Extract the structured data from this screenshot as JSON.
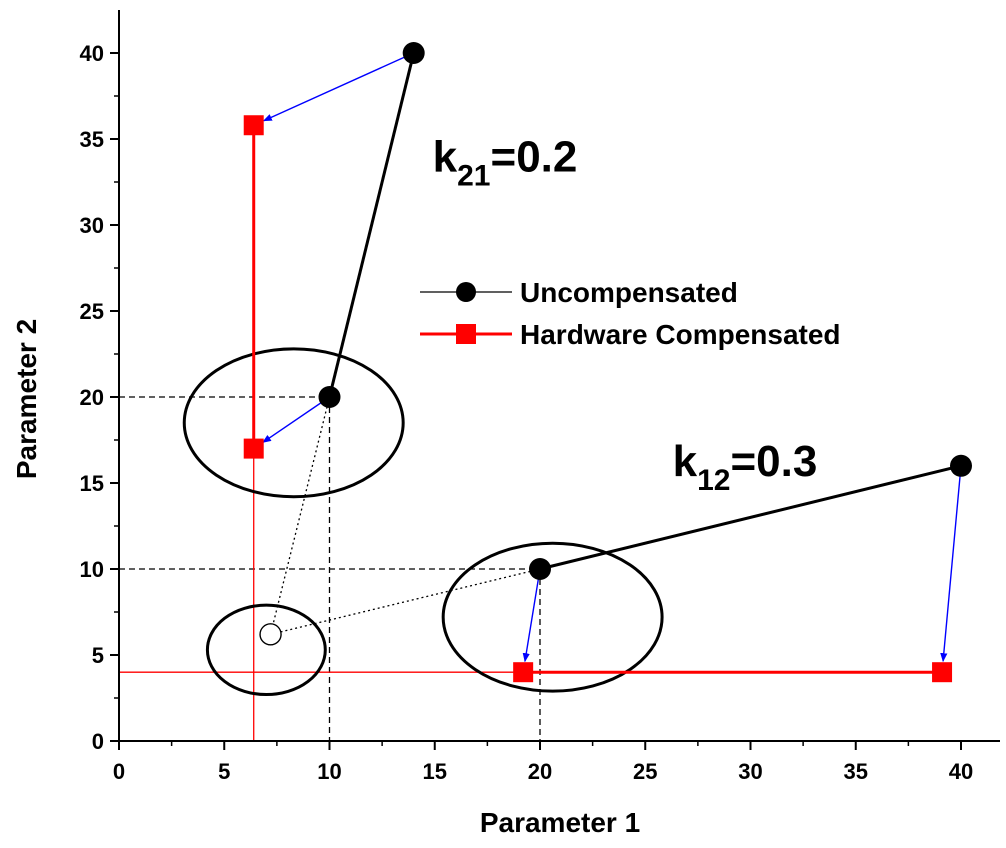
{
  "chart_data": {
    "type": "scatter",
    "title": "",
    "xlabel": "Parameter 1",
    "ylabel": "Parameter 2",
    "xlim": [
      0,
      42
    ],
    "ylim": [
      0,
      42
    ],
    "x_ticks": [
      0,
      5,
      10,
      15,
      20,
      25,
      30,
      35,
      40
    ],
    "y_ticks": [
      0,
      5,
      10,
      15,
      20,
      25,
      30,
      35,
      40
    ],
    "x_tick_labels": [
      "0",
      "5",
      "10",
      "15",
      "20",
      "25",
      "30",
      "35",
      "40"
    ],
    "y_tick_labels": [
      "0",
      "5",
      "10",
      "15",
      "20",
      "25",
      "30",
      "35",
      "40"
    ],
    "grid": false,
    "legend_position": "center-right",
    "series": [
      {
        "name": "Uncompensated",
        "marker": "circle",
        "color": "#000000",
        "segments": [
          [
            {
              "x": 10,
              "y": 20
            },
            {
              "x": 14,
              "y": 40
            }
          ],
          [
            {
              "x": 20,
              "y": 10
            },
            {
              "x": 40,
              "y": 16
            }
          ]
        ]
      },
      {
        "name": "Hardware Compensated",
        "marker": "square",
        "color": "#ff0000",
        "segments": [
          [
            {
              "x": 6.4,
              "y": 17
            },
            {
              "x": 6.4,
              "y": 35.8
            }
          ],
          [
            {
              "x": 19.2,
              "y": 4
            },
            {
              "x": 39.1,
              "y": 4
            }
          ]
        ]
      }
    ],
    "arrows": [
      {
        "from": [
          14,
          40
        ],
        "to": [
          6.4,
          35.8
        ],
        "color": "#0000ff"
      },
      {
        "from": [
          10,
          20
        ],
        "to": [
          6.4,
          17
        ],
        "color": "#0000ff"
      },
      {
        "from": [
          20,
          10
        ],
        "to": [
          19.2,
          4
        ],
        "color": "#0000ff"
      },
      {
        "from": [
          40,
          16
        ],
        "to": [
          39.1,
          4
        ],
        "color": "#0000ff"
      }
    ],
    "open_point": {
      "x": 7.2,
      "y": 6.2
    },
    "ellipses": [
      {
        "cx": 8.3,
        "cy": 18.5,
        "rx": 5.2,
        "ry": 4.3
      },
      {
        "cx": 20.6,
        "cy": 7.2,
        "rx": 5.2,
        "ry": 4.3
      },
      {
        "cx": 7.0,
        "cy": 5.3,
        "rx": 2.8,
        "ry": 2.6
      }
    ],
    "guide_lines_black": [
      [
        [
          0,
          20
        ],
        [
          10,
          20
        ]
      ],
      [
        [
          10,
          20
        ],
        [
          10,
          0
        ]
      ],
      [
        [
          0,
          10
        ],
        [
          20,
          10
        ]
      ],
      [
        [
          20,
          10
        ],
        [
          20,
          0
        ]
      ]
    ],
    "guide_lines_red": [
      [
        [
          0,
          4
        ],
        [
          19.2,
          4
        ]
      ],
      [
        [
          6.4,
          17
        ],
        [
          6.4,
          0
        ]
      ]
    ],
    "dotted_lines": [
      [
        [
          10,
          20
        ],
        [
          7.2,
          6.2
        ]
      ],
      [
        [
          20,
          10
        ],
        [
          7.2,
          6.2
        ]
      ]
    ],
    "annotations": [
      {
        "base": "k",
        "sub": "21",
        "rest": "=0.2",
        "x": 14.9,
        "y": 33.1
      },
      {
        "base": "k",
        "sub": "12",
        "rest": "=0.3",
        "x": 26.3,
        "y": 15.4
      }
    ]
  }
}
